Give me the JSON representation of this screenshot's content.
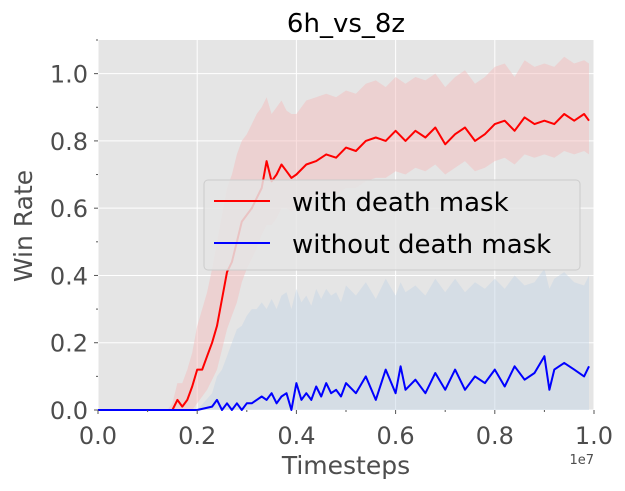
{
  "chart_data": {
    "type": "line",
    "title": "6h_vs_8z",
    "xlabel": "Timesteps",
    "ylabel": "Win Rate",
    "x_offset_label": "1e7",
    "xlim": [
      0.0,
      1.0
    ],
    "ylim": [
      0.0,
      1.1
    ],
    "x_ticks": [
      0.0,
      0.2,
      0.4,
      0.6,
      0.8,
      1.0
    ],
    "x_tick_labels": [
      "0.0",
      "0.2",
      "0.4",
      "0.6",
      "0.8",
      "1.0"
    ],
    "y_ticks": [
      0.0,
      0.2,
      0.4,
      0.6,
      0.8,
      1.0
    ],
    "y_tick_labels": [
      "0.0",
      "0.2",
      "0.4",
      "0.6",
      "0.8",
      "1.0"
    ],
    "grid": true,
    "background": "#e5e5e5",
    "legend_position": "center-right",
    "series": [
      {
        "name": "with death mask",
        "color": "#ff0000",
        "band_color": "#f4b8b8",
        "x": [
          0.0,
          0.05,
          0.1,
          0.14,
          0.15,
          0.16,
          0.17,
          0.18,
          0.19,
          0.2,
          0.21,
          0.22,
          0.23,
          0.24,
          0.25,
          0.26,
          0.27,
          0.28,
          0.29,
          0.3,
          0.31,
          0.32,
          0.33,
          0.34,
          0.35,
          0.36,
          0.37,
          0.38,
          0.39,
          0.4,
          0.42,
          0.44,
          0.46,
          0.48,
          0.5,
          0.52,
          0.54,
          0.56,
          0.58,
          0.6,
          0.62,
          0.64,
          0.66,
          0.68,
          0.7,
          0.72,
          0.74,
          0.76,
          0.78,
          0.8,
          0.82,
          0.84,
          0.86,
          0.88,
          0.9,
          0.92,
          0.94,
          0.96,
          0.98,
          0.99
        ],
        "y": [
          0.0,
          0.0,
          0.0,
          0.0,
          0.0,
          0.03,
          0.01,
          0.03,
          0.07,
          0.12,
          0.12,
          0.16,
          0.2,
          0.25,
          0.33,
          0.41,
          0.44,
          0.5,
          0.56,
          0.58,
          0.6,
          0.63,
          0.66,
          0.74,
          0.68,
          0.7,
          0.73,
          0.71,
          0.69,
          0.7,
          0.73,
          0.74,
          0.76,
          0.75,
          0.78,
          0.77,
          0.8,
          0.81,
          0.8,
          0.83,
          0.8,
          0.83,
          0.81,
          0.84,
          0.79,
          0.82,
          0.84,
          0.8,
          0.82,
          0.85,
          0.86,
          0.83,
          0.87,
          0.85,
          0.86,
          0.85,
          0.88,
          0.86,
          0.88,
          0.86
        ],
        "lower": [
          0.0,
          0.0,
          0.0,
          0.0,
          0.0,
          0.0,
          0.0,
          0.0,
          0.0,
          0.02,
          0.04,
          0.06,
          0.09,
          0.12,
          0.18,
          0.24,
          0.28,
          0.32,
          0.38,
          0.42,
          0.45,
          0.48,
          0.52,
          0.55,
          0.55,
          0.57,
          0.6,
          0.6,
          0.59,
          0.6,
          0.62,
          0.63,
          0.64,
          0.64,
          0.66,
          0.66,
          0.68,
          0.69,
          0.69,
          0.71,
          0.7,
          0.72,
          0.71,
          0.73,
          0.7,
          0.72,
          0.74,
          0.71,
          0.72,
          0.74,
          0.75,
          0.73,
          0.76,
          0.75,
          0.76,
          0.75,
          0.77,
          0.76,
          0.77,
          0.76
        ],
        "upper": [
          0.0,
          0.0,
          0.0,
          0.0,
          0.02,
          0.08,
          0.08,
          0.12,
          0.17,
          0.25,
          0.3,
          0.35,
          0.42,
          0.5,
          0.58,
          0.66,
          0.7,
          0.76,
          0.8,
          0.82,
          0.85,
          0.88,
          0.9,
          0.93,
          0.88,
          0.9,
          0.92,
          0.89,
          0.88,
          0.88,
          0.92,
          0.93,
          0.94,
          0.93,
          0.95,
          0.94,
          0.97,
          0.98,
          0.96,
          0.99,
          0.97,
          0.99,
          0.98,
          1.0,
          0.96,
          0.99,
          1.01,
          0.97,
          0.99,
          1.02,
          1.03,
          0.99,
          1.04,
          1.02,
          1.03,
          1.02,
          1.05,
          1.03,
          1.04,
          1.03
        ]
      },
      {
        "name": "without death mask",
        "color": "#0000ff",
        "band_color": "#c0d2e4",
        "x": [
          0.0,
          0.05,
          0.1,
          0.15,
          0.2,
          0.23,
          0.24,
          0.25,
          0.26,
          0.27,
          0.28,
          0.29,
          0.3,
          0.31,
          0.32,
          0.33,
          0.34,
          0.35,
          0.36,
          0.37,
          0.38,
          0.39,
          0.4,
          0.41,
          0.42,
          0.43,
          0.44,
          0.45,
          0.46,
          0.47,
          0.48,
          0.49,
          0.5,
          0.52,
          0.54,
          0.56,
          0.58,
          0.6,
          0.61,
          0.62,
          0.64,
          0.66,
          0.68,
          0.7,
          0.72,
          0.74,
          0.76,
          0.78,
          0.8,
          0.82,
          0.84,
          0.86,
          0.88,
          0.9,
          0.91,
          0.92,
          0.94,
          0.96,
          0.98,
          0.99
        ],
        "y": [
          0.0,
          0.0,
          0.0,
          0.0,
          0.0,
          0.01,
          0.03,
          0.0,
          0.02,
          0.0,
          0.02,
          0.0,
          0.02,
          0.02,
          0.03,
          0.04,
          0.03,
          0.05,
          0.02,
          0.04,
          0.05,
          0.0,
          0.08,
          0.03,
          0.05,
          0.03,
          0.07,
          0.04,
          0.08,
          0.05,
          0.06,
          0.04,
          0.08,
          0.05,
          0.1,
          0.03,
          0.12,
          0.05,
          0.13,
          0.06,
          0.09,
          0.05,
          0.11,
          0.06,
          0.12,
          0.06,
          0.1,
          0.08,
          0.12,
          0.07,
          0.13,
          0.09,
          0.11,
          0.16,
          0.06,
          0.12,
          0.14,
          0.12,
          0.1,
          0.13
        ],
        "lower": [
          0.0,
          0.0,
          0.0,
          0.0,
          0.0,
          0.0,
          0.0,
          0.0,
          0.0,
          0.0,
          0.0,
          0.0,
          0.0,
          0.0,
          0.0,
          0.0,
          0.0,
          0.0,
          0.0,
          0.0,
          0.0,
          0.0,
          0.0,
          0.0,
          0.0,
          0.0,
          0.0,
          0.0,
          0.0,
          0.0,
          0.0,
          0.0,
          0.0,
          0.0,
          0.0,
          0.0,
          0.0,
          0.0,
          0.0,
          0.0,
          0.0,
          0.0,
          0.0,
          0.0,
          0.0,
          0.0,
          0.0,
          0.0,
          0.0,
          0.0,
          0.0,
          0.0,
          0.0,
          0.0,
          0.0,
          0.0,
          0.0,
          0.0,
          0.0,
          0.0
        ],
        "upper": [
          0.0,
          0.0,
          0.0,
          0.0,
          0.0,
          0.05,
          0.1,
          0.12,
          0.16,
          0.2,
          0.24,
          0.25,
          0.28,
          0.3,
          0.3,
          0.32,
          0.3,
          0.33,
          0.3,
          0.34,
          0.35,
          0.3,
          0.36,
          0.32,
          0.34,
          0.31,
          0.36,
          0.33,
          0.36,
          0.34,
          0.35,
          0.32,
          0.37,
          0.34,
          0.38,
          0.33,
          0.39,
          0.34,
          0.38,
          0.35,
          0.37,
          0.34,
          0.39,
          0.35,
          0.39,
          0.35,
          0.38,
          0.36,
          0.39,
          0.36,
          0.4,
          0.37,
          0.38,
          0.42,
          0.36,
          0.39,
          0.41,
          0.38,
          0.37,
          0.4
        ]
      }
    ]
  }
}
